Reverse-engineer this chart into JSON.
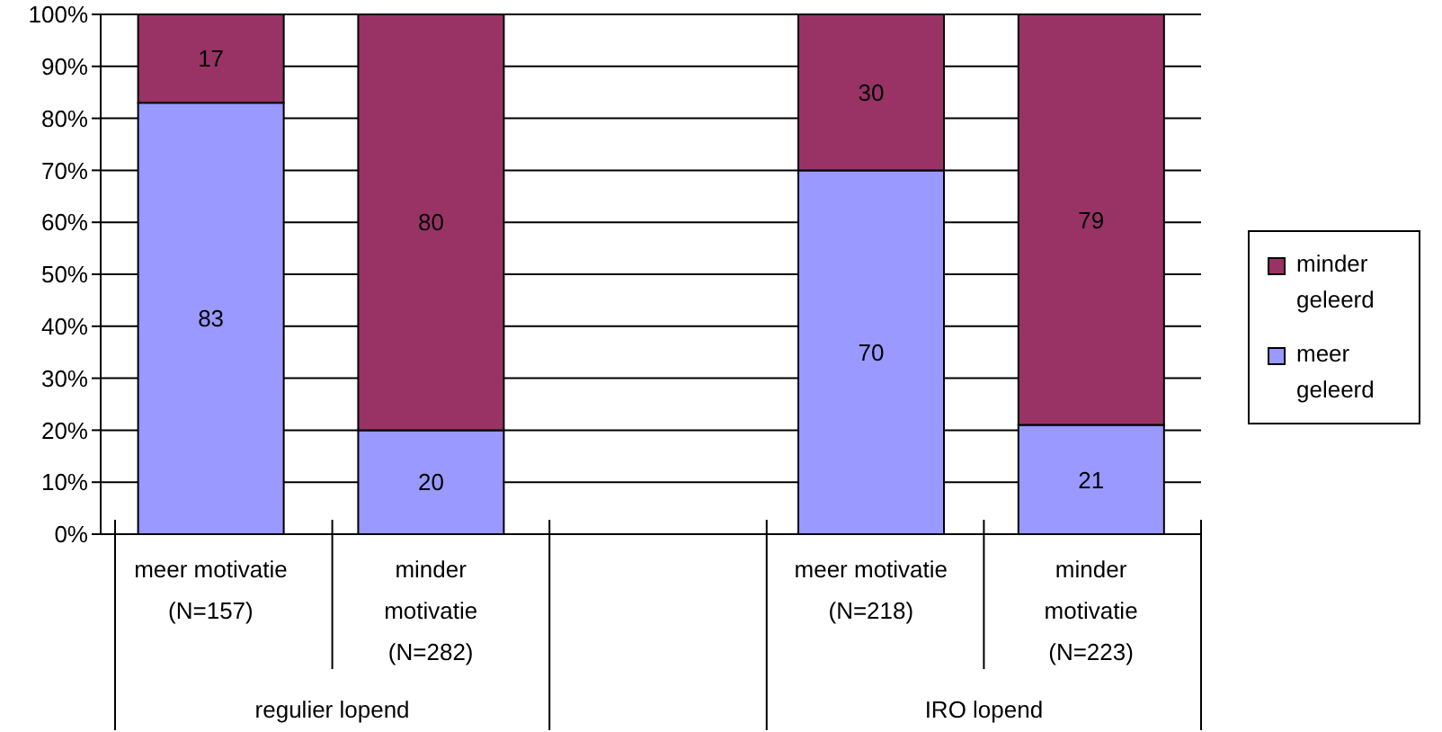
{
  "chart_data": {
    "type": "bar",
    "stacked": true,
    "categories": [
      "meer motivatie (N=157)",
      "minder motivatie (N=282)",
      null,
      "meer motivatie (N=218)",
      "minder motivatie (N=223)"
    ],
    "series": [
      {
        "name": "meer geleerd",
        "color": "#9999ff",
        "values": [
          83,
          20,
          null,
          70,
          21
        ]
      },
      {
        "name": "minder geleerd",
        "color": "#993366",
        "values": [
          17,
          80,
          null,
          30,
          79
        ]
      }
    ],
    "ylim": [
      0,
      100
    ],
    "yticks": [
      {
        "value": 0,
        "label": "0%"
      },
      {
        "value": 10,
        "label": "10%"
      },
      {
        "value": 20,
        "label": "20%"
      },
      {
        "value": 30,
        "label": "30%"
      },
      {
        "value": 40,
        "label": "40%"
      },
      {
        "value": 50,
        "label": "50%"
      },
      {
        "value": 60,
        "label": "60%"
      },
      {
        "value": 70,
        "label": "70%"
      },
      {
        "value": 80,
        "label": "80%"
      },
      {
        "value": 90,
        "label": "90%"
      },
      {
        "value": 100,
        "label": "100%"
      }
    ],
    "grid": "y",
    "legend": "right",
    "data_labels": true,
    "annotations": [
      "regulier lopend",
      "IRO lopend"
    ]
  }
}
